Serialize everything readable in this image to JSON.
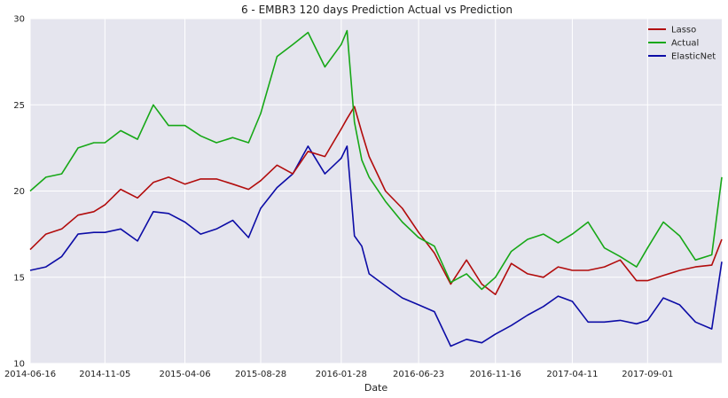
{
  "chart_data": {
    "type": "line",
    "title": "6 - EMBR3 120 days Prediction Actual vs Prediction",
    "xlabel": "Date",
    "ylabel": "",
    "ylim": [
      10,
      30
    ],
    "yticks": [
      10,
      15,
      20,
      25,
      30
    ],
    "xrange": [
      "2014-06-16",
      "2018-01-20"
    ],
    "xticks": [
      "2014-06-16",
      "2014-11-05",
      "2015-04-06",
      "2015-08-28",
      "2016-01-28",
      "2016-06-23",
      "2016-11-16",
      "2017-04-11",
      "2017-09-01"
    ],
    "grid": true,
    "legend_position": "top-right",
    "x": [
      "2014-06-16",
      "2014-07-16",
      "2014-08-15",
      "2014-09-15",
      "2014-10-15",
      "2014-11-05",
      "2014-12-05",
      "2015-01-06",
      "2015-02-05",
      "2015-03-06",
      "2015-04-06",
      "2015-05-06",
      "2015-06-05",
      "2015-07-06",
      "2015-08-05",
      "2015-08-28",
      "2015-09-28",
      "2015-10-28",
      "2015-11-26",
      "2015-12-28",
      "2016-01-28",
      "2016-02-08",
      "2016-02-22",
      "2016-03-07",
      "2016-03-21",
      "2016-04-21",
      "2016-05-23",
      "2016-06-23",
      "2016-07-23",
      "2016-08-23",
      "2016-09-22",
      "2016-10-21",
      "2016-11-16",
      "2016-12-16",
      "2017-01-16",
      "2017-02-15",
      "2017-03-15",
      "2017-04-11",
      "2017-05-11",
      "2017-06-11",
      "2017-07-11",
      "2017-08-11",
      "2017-09-01",
      "2017-10-01",
      "2017-11-01",
      "2017-12-01",
      "2018-01-01",
      "2018-01-20"
    ],
    "series": [
      {
        "name": "Lasso",
        "color": "#b20c0c",
        "values": [
          16.6,
          17.5,
          17.8,
          18.6,
          18.8,
          19.2,
          20.1,
          19.6,
          20.5,
          20.8,
          20.4,
          20.7,
          20.7,
          20.4,
          20.1,
          20.6,
          21.5,
          21.0,
          22.3,
          22.0,
          23.6,
          24.2,
          24.9,
          23.4,
          22.0,
          20.0,
          19.0,
          17.6,
          16.4,
          14.6,
          16.0,
          14.6,
          14.0,
          15.8,
          15.2,
          15.0,
          15.6,
          15.4,
          15.4,
          15.6,
          16.0,
          14.8,
          14.8,
          15.1,
          15.4,
          15.6,
          15.7,
          17.2
        ]
      },
      {
        "name": "Actual",
        "color": "#17a817",
        "values": [
          20.0,
          20.8,
          21.0,
          22.5,
          22.8,
          22.8,
          23.5,
          23.0,
          25.0,
          23.8,
          23.8,
          23.2,
          22.8,
          23.1,
          22.8,
          24.5,
          27.8,
          28.5,
          29.2,
          27.2,
          28.5,
          29.3,
          24.0,
          21.8,
          20.8,
          19.4,
          18.2,
          17.3,
          16.8,
          14.7,
          15.2,
          14.3,
          15.0,
          16.5,
          17.2,
          17.5,
          17.0,
          17.5,
          18.2,
          16.7,
          16.2,
          15.6,
          16.7,
          18.2,
          17.4,
          16.0,
          16.3,
          20.8
        ]
      },
      {
        "name": "ElasticNet",
        "color": "#0c0ca6",
        "values": [
          15.4,
          15.6,
          16.2,
          17.5,
          17.6,
          17.6,
          17.8,
          17.1,
          18.8,
          18.7,
          18.2,
          17.5,
          17.8,
          18.3,
          17.3,
          19.0,
          20.2,
          21.0,
          22.6,
          21.0,
          21.9,
          22.6,
          17.4,
          16.8,
          15.2,
          14.5,
          13.8,
          13.4,
          13.0,
          11.0,
          11.4,
          11.2,
          11.7,
          12.2,
          12.8,
          13.3,
          13.9,
          13.6,
          12.4,
          12.4,
          12.5,
          12.3,
          12.5,
          13.8,
          13.4,
          12.4,
          12.0,
          15.9
        ]
      }
    ]
  }
}
